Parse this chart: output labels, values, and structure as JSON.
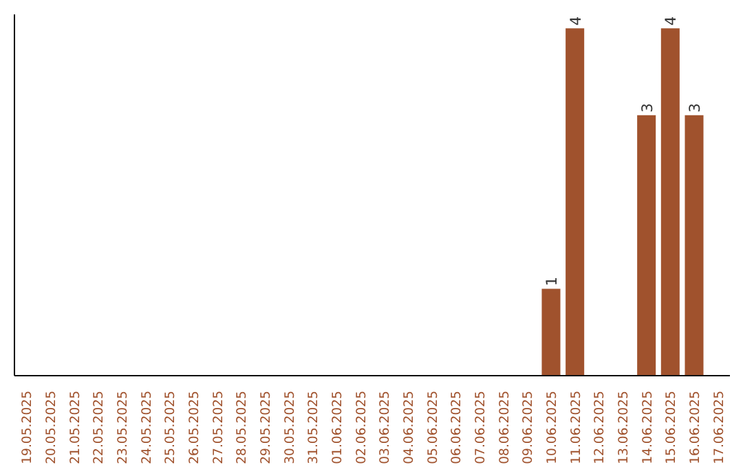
{
  "chart_data": {
    "type": "bar",
    "categories": [
      "19.05.2025",
      "20.05.2025",
      "21.05.2025",
      "22.05.2025",
      "23.05.2025",
      "24.05.2025",
      "25.05.2025",
      "26.05.2025",
      "27.05.2025",
      "28.05.2025",
      "29.05.2025",
      "30.05.2025",
      "31.05.2025",
      "01.06.2025",
      "02.06.2025",
      "03.06.2025",
      "04.06.2025",
      "05.06.2025",
      "06.06.2025",
      "07.06.2025",
      "08.06.2025",
      "09.06.2025",
      "10.06.2025",
      "11.06.2025",
      "12.06.2025",
      "13.06.2025",
      "14.06.2025",
      "15.06.2025",
      "16.06.2025",
      "17.06.2025"
    ],
    "values": [
      null,
      null,
      null,
      null,
      null,
      null,
      null,
      null,
      null,
      null,
      null,
      null,
      null,
      null,
      null,
      null,
      null,
      null,
      null,
      null,
      null,
      null,
      1,
      4,
      null,
      null,
      3,
      4,
      3,
      null
    ],
    "color": "#a0522d",
    "data_labels": true
  }
}
